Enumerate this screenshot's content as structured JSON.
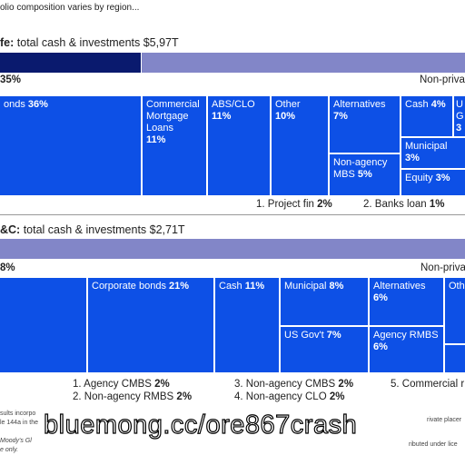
{
  "header": {
    "title": "olio composition varies by region..."
  },
  "sections": [
    {
      "label": "fe:",
      "total": "total cash & investments $5,97T",
      "left_share": "35%",
      "right_label": "Non-priva",
      "tiles": [
        {
          "name": "onds",
          "share": "36%"
        },
        {
          "name": "Commercial Mortgage Loans",
          "share": "11%"
        },
        {
          "name": "ABS/CLO",
          "share": "11%"
        },
        {
          "name": "Other",
          "share": "10%"
        },
        {
          "name": "Alternatives",
          "share": "7%"
        },
        {
          "name": "Non-agency MBS",
          "share": "5%"
        },
        {
          "name": "Cash",
          "share": "4%"
        },
        {
          "name": "U G",
          "share": "3"
        },
        {
          "name": "Municipal",
          "share": "3%"
        },
        {
          "name": "Equity",
          "share": "3%"
        }
      ],
      "footnotes": [
        {
          "name": "1. Project fin",
          "share": "2%"
        },
        {
          "name": "2. Banks loan",
          "share": "1%"
        }
      ]
    },
    {
      "label": "&C:",
      "total": "total cash & investments $2,71T",
      "left_share": "8%",
      "right_label": "Non-priva",
      "tiles": [
        {
          "name": "Corporate bonds",
          "share": "21%"
        },
        {
          "name": "Cash",
          "share": "11%"
        },
        {
          "name": "Municipal",
          "share": "8%"
        },
        {
          "name": "US Gov't",
          "share": "7%"
        },
        {
          "name": "Alternatives",
          "share": "6%"
        },
        {
          "name": "Agency RMBS",
          "share": "6%"
        },
        {
          "name": "Oth"
        }
      ],
      "footnotes": [
        {
          "name": "1. Agency CMBS",
          "share": "2%"
        },
        {
          "name": "2. Non-agency RMBS",
          "share": "2%"
        },
        {
          "name": "3. Non-agency CMBS",
          "share": "2%"
        },
        {
          "name": "4. Non-agency CLO",
          "share": "2%"
        },
        {
          "name": "5. Commercial r"
        }
      ]
    }
  ],
  "footer": {
    "lines": [
      "sults incorpo",
      "le 144a in the",
      "Moody's Gl",
      "e only.",
      "rivate placer",
      "ributed under lice"
    ]
  },
  "watermark": "bluemong.cc/ore867crash"
}
